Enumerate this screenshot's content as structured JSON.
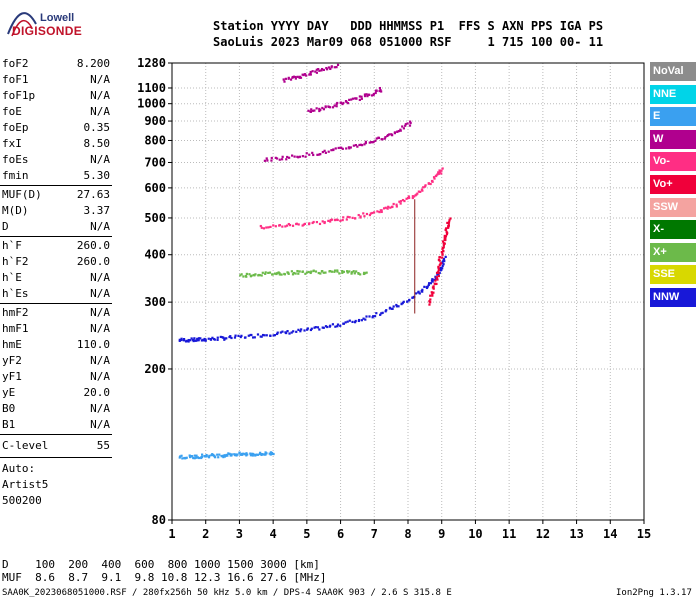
{
  "logo": {
    "brand": "Lowell",
    "product": "DIGISONDE"
  },
  "header": {
    "line1": "Station YYYY DAY   DDD HHMMSS P1  FFS S AXN PPS IGA PS",
    "line2": "SaoLuis 2023 Mar09 068 051000 RSF     1 715 100 00- 11"
  },
  "params": [
    {
      "k": "foF2",
      "v": "8.200"
    },
    {
      "k": "foF1",
      "v": "N/A"
    },
    {
      "k": "foF1p",
      "v": "N/A"
    },
    {
      "k": "foE",
      "v": "N/A"
    },
    {
      "k": "foEp",
      "v": "0.35"
    },
    {
      "k": "fxI",
      "v": "8.50"
    },
    {
      "k": "foEs",
      "v": "N/A"
    },
    {
      "k": "fmin",
      "v": "5.30"
    }
  ],
  "params2": [
    {
      "k": "MUF(D)",
      "v": "27.63"
    },
    {
      "k": "M(D)",
      "v": "3.37"
    },
    {
      "k": "D",
      "v": "N/A"
    }
  ],
  "params3": [
    {
      "k": "h`F",
      "v": "260.0"
    },
    {
      "k": "h`F2",
      "v": "260.0"
    },
    {
      "k": "h`E",
      "v": "N/A"
    },
    {
      "k": "h`Es",
      "v": "N/A"
    }
  ],
  "params4": [
    {
      "k": "hmF2",
      "v": "N/A"
    },
    {
      "k": "hmF1",
      "v": "N/A"
    },
    {
      "k": "hmE",
      "v": "110.0"
    },
    {
      "k": "yF2",
      "v": "N/A"
    },
    {
      "k": "yF1",
      "v": "N/A"
    },
    {
      "k": "yE",
      "v": "20.0"
    },
    {
      "k": "B0",
      "v": "N/A"
    },
    {
      "k": "B1",
      "v": "N/A"
    }
  ],
  "clevel": {
    "k": "C-level",
    "v": "55"
  },
  "auto": [
    "Auto:",
    "Artist5",
    "500200"
  ],
  "legend": [
    {
      "label": "NoVal",
      "color": "#8c8c8c"
    },
    {
      "label": "NNE",
      "color": "#00d4e8"
    },
    {
      "label": "E",
      "color": "#3aa0f0"
    },
    {
      "label": "W",
      "color": "#b0008e"
    },
    {
      "label": "Vo-",
      "color": "#ff2e84"
    },
    {
      "label": "Vo+",
      "color": "#f0003a"
    },
    {
      "label": "SSW",
      "color": "#f4a3a0"
    },
    {
      "label": "X-",
      "color": "#007800"
    },
    {
      "label": "X+",
      "color": "#6cba4a"
    },
    {
      "label": "SSE",
      "color": "#d8d800"
    },
    {
      "label": "NNW",
      "color": "#1818d8"
    }
  ],
  "bottom": {
    "row1": "D    100  200  400  600  800 1000 1500 3000 [km]",
    "row2": "MUF  8.6  8.7  9.1  9.8 10.8 12.3 16.6 27.6 [MHz]"
  },
  "footer": {
    "left": "SAA0K_2023068051000.RSF / 280fx256h 50 kHz 5.0 km / DPS-4 SAA0K 903 / 2.6 S 315.8 E",
    "right": "Ion2Png 1.3.17"
  },
  "chart_data": {
    "type": "scatter",
    "xlim": [
      1,
      15
    ],
    "ylim": [
      80,
      1280
    ],
    "y_scale": "log",
    "x_ticks": [
      1,
      2,
      3,
      4,
      5,
      6,
      7,
      8,
      9,
      10,
      11,
      12,
      13,
      14,
      15
    ],
    "y_ticks": [
      80,
      200,
      300,
      400,
      500,
      600,
      700,
      800,
      900,
      1000,
      1100,
      1280
    ],
    "grid": true,
    "series": [
      {
        "color": "#1818d8",
        "x": [
          1.2,
          1.6,
          2.0,
          2.6,
          3.4,
          4.2,
          5.0,
          5.8,
          6.6,
          7.4,
          8.0,
          8.5,
          8.9,
          9.1
        ],
        "y": [
          240,
          240,
          241,
          243,
          246,
          250,
          255,
          262,
          272,
          288,
          305,
          330,
          360,
          400
        ]
      },
      {
        "color": "#ff2e84",
        "x": [
          3.6,
          4.5,
          5.4,
          6.2,
          7.0,
          7.6,
          8.2,
          8.7,
          9.0
        ],
        "y": [
          475,
          482,
          490,
          502,
          520,
          545,
          580,
          630,
          680
        ]
      },
      {
        "color": "#b0008e",
        "x": [
          3.7,
          4.6,
          5.5,
          6.3,
          7.0,
          7.6,
          8.1
        ],
        "y": [
          715,
          730,
          750,
          775,
          805,
          845,
          900
        ]
      },
      {
        "color": "#b0008e",
        "x": [
          5.0,
          5.6,
          6.2,
          6.8,
          7.2
        ],
        "y": [
          960,
          985,
          1020,
          1060,
          1100
        ]
      },
      {
        "color": "#b0008e",
        "x": [
          4.3,
          4.8,
          5.3,
          5.9
        ],
        "y": [
          1160,
          1190,
          1230,
          1270
        ]
      },
      {
        "color": "#6cba4a",
        "x": [
          3.0,
          3.6,
          4.2,
          4.8,
          5.5,
          6.2,
          6.8
        ],
        "y": [
          355,
          358,
          360,
          362,
          363,
          362,
          360
        ]
      },
      {
        "color": "#3aa0f0",
        "x": [
          1.2,
          1.6,
          2.0,
          2.4,
          2.8,
          3.2,
          3.6,
          4.0
        ],
        "y": [
          118,
          118,
          119,
          119,
          120,
          120,
          120,
          121
        ]
      },
      {
        "color": "#f0003a",
        "x": [
          8.6,
          8.8,
          8.9,
          9.0,
          9.1,
          9.2
        ],
        "y": [
          300,
          340,
          380,
          420,
          460,
          500
        ]
      }
    ]
  }
}
